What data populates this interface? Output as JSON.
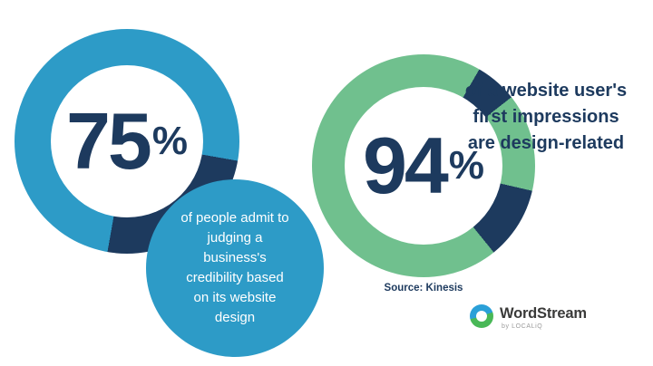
{
  "colors": {
    "blue": "#2d9bc7",
    "green": "#70c08e",
    "navy": "#1d3a5e",
    "logo-blue": "#2aa0d8",
    "logo-green": "#49b857",
    "brand-text": "#3a3a39",
    "byline-gray": "#9b9b9b"
  },
  "chart_data": [
    {
      "type": "donut",
      "value": 75,
      "label": "75",
      "percent_sign": "%",
      "caption": "of people admit to judging a business's credibility based on its website design",
      "ring_main_color": "#2d9bc7",
      "ring_accent_color": "#1d3a5e",
      "segments": [
        {
          "color": "#2d9bc7",
          "start": 0,
          "end": 100
        },
        {
          "color": "#1d3a5e",
          "start": 100,
          "end": 190
        },
        {
          "color": "#2d9bc7",
          "start": 190,
          "end": 360
        }
      ]
    },
    {
      "type": "donut",
      "value": 94,
      "label": "94",
      "percent_sign": "%",
      "caption": "of a website user's first impressions are design-related",
      "source": "Source: Kinesis",
      "ring_main_color": "#70c08e",
      "ring_accent_color": "#1d3a5e",
      "segments": [
        {
          "color": "#70c08e",
          "start": 0,
          "end": 30
        },
        {
          "color": "#1d3a5e",
          "start": 30,
          "end": 52
        },
        {
          "color": "#70c08e",
          "start": 52,
          "end": 103
        },
        {
          "color": "#1d3a5e",
          "start": 103,
          "end": 141
        },
        {
          "color": "#70c08e",
          "start": 141,
          "end": 360
        }
      ]
    }
  ],
  "logo": {
    "brand": "WordStream",
    "byline": "by LOCALiQ"
  }
}
